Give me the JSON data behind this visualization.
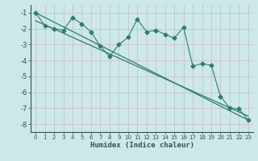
{
  "title": "",
  "xlabel": "Humidex (Indice chaleur)",
  "bg_color": "#cce8e8",
  "grid_color": "#dde8e8",
  "line_color": "#2d7d6e",
  "xlim": [
    -0.5,
    23.5
  ],
  "ylim": [
    -8.5,
    -0.5
  ],
  "yticks": [
    -8,
    -7,
    -6,
    -5,
    -4,
    -3,
    -2,
    -1
  ],
  "xticks": [
    0,
    1,
    2,
    3,
    4,
    5,
    6,
    7,
    8,
    9,
    10,
    11,
    12,
    13,
    14,
    15,
    16,
    17,
    18,
    19,
    20,
    21,
    22,
    23
  ],
  "line1_x": [
    0,
    1,
    2,
    3,
    4,
    5,
    6,
    7,
    8,
    9,
    10,
    11,
    12,
    13,
    14,
    15,
    16,
    17,
    18,
    19,
    20,
    21,
    22,
    23
  ],
  "line1_y": [
    -1.0,
    -1.8,
    -2.0,
    -2.1,
    -1.3,
    -1.7,
    -2.2,
    -3.1,
    -3.75,
    -3.0,
    -2.55,
    -1.4,
    -2.2,
    -2.1,
    -2.35,
    -2.6,
    -1.9,
    -4.35,
    -4.2,
    -4.3,
    -6.25,
    -7.0,
    -7.05,
    -7.75
  ],
  "line2_x": [
    0,
    23
  ],
  "line2_y": [
    -1.0,
    -7.75
  ],
  "line3_x": [
    0,
    23
  ],
  "line3_y": [
    -1.5,
    -7.5
  ]
}
